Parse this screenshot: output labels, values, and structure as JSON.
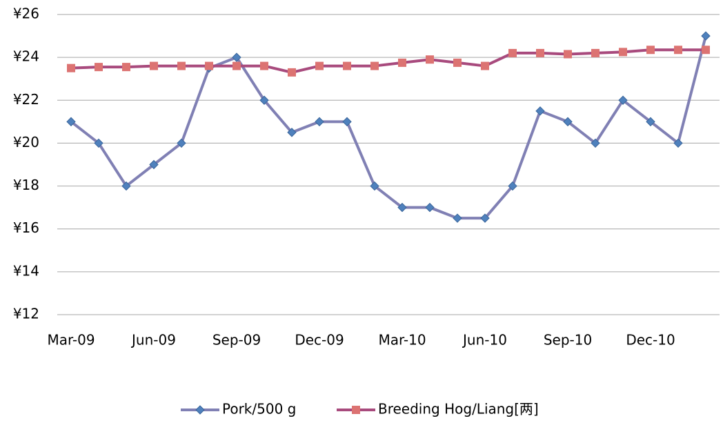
{
  "chart_data": {
    "type": "line",
    "categories": [
      "Mar-09",
      null,
      null,
      "Jun-09",
      null,
      null,
      "Sep-09",
      null,
      null,
      "Dec-09",
      null,
      null,
      "Mar-10",
      null,
      null,
      "Jun-10",
      null,
      null,
      "Sep-10",
      null,
      null,
      "Dec-10",
      null,
      null
    ],
    "series": [
      {
        "name": "Pork/500 g",
        "color": "#8080b4",
        "marker_color": "#4f81bd",
        "marker": "diamond",
        "values": [
          21,
          20,
          18,
          19,
          20,
          23.5,
          24,
          22,
          20.5,
          21,
          21,
          18,
          17,
          17,
          16.5,
          16.5,
          18,
          21.5,
          21,
          20,
          22,
          21,
          20,
          25
        ]
      },
      {
        "name": "Breeding Hog/Liang[两]",
        "color": "#a84a7d",
        "marker_color": "#dc7372",
        "marker": "square",
        "values": [
          23.5,
          23.55,
          23.55,
          23.6,
          23.6,
          23.6,
          23.6,
          23.6,
          23.3,
          23.6,
          23.6,
          23.6,
          23.75,
          23.9,
          23.75,
          23.6,
          24.2,
          24.2,
          24.15,
          24.2,
          24.25,
          24.35,
          24.35,
          24.35
        ]
      }
    ],
    "ylim": [
      12,
      26
    ],
    "yticks": [
      {
        "value": 12,
        "label": "¥12"
      },
      {
        "value": 14,
        "label": "¥14"
      },
      {
        "value": 16,
        "label": "¥16"
      },
      {
        "value": 18,
        "label": "¥18"
      },
      {
        "value": 20,
        "label": "¥20"
      },
      {
        "value": 22,
        "label": "¥22"
      },
      {
        "value": 24,
        "label": "¥24"
      },
      {
        "value": 26,
        "label": "¥26"
      }
    ],
    "grid": true,
    "legend": "bottom"
  }
}
